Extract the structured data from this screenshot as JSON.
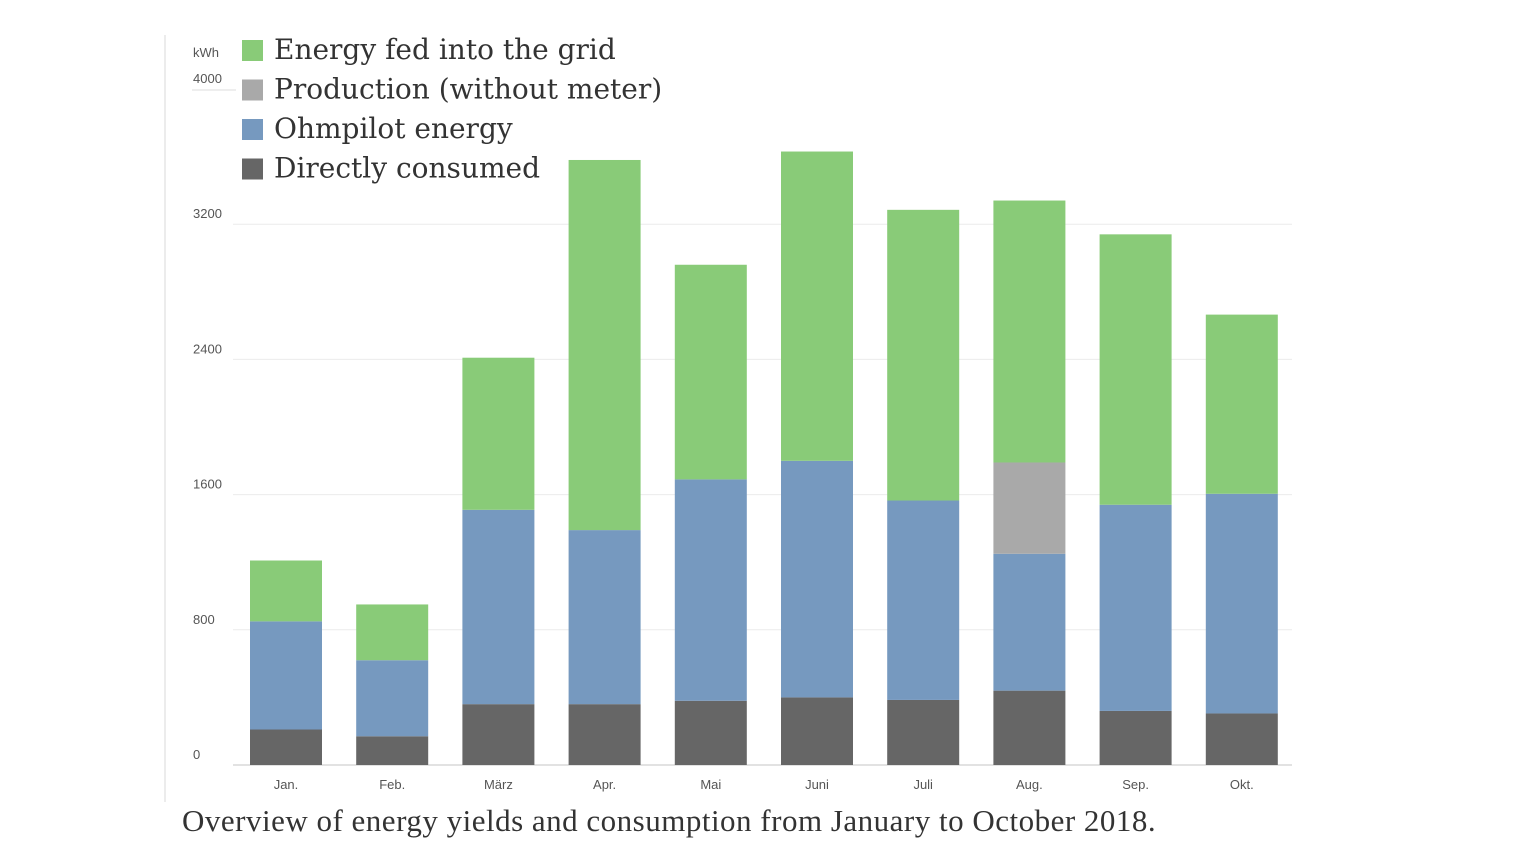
{
  "caption": "Overview of energy yields and consumption from January to October 2018.",
  "chart_data": {
    "type": "bar",
    "stacked": true,
    "ylabel": "kWh",
    "ylim": [
      0,
      4000
    ],
    "yticks": [
      0,
      800,
      1600,
      2400,
      3200,
      4000
    ],
    "grid": true,
    "legend_position": "top-left",
    "categories": [
      "Jan.",
      "Feb.",
      "März",
      "Apr.",
      "Mai",
      "Juni",
      "Juli",
      "Aug.",
      "Sep.",
      "Okt."
    ],
    "series": [
      {
        "name": "Directly consumed",
        "color": "#666666",
        "values": [
          210,
          170,
          360,
          360,
          380,
          400,
          385,
          440,
          320,
          305
        ]
      },
      {
        "name": "Ohmpilot energy",
        "color": "#7699bf",
        "values": [
          640,
          450,
          1150,
          1030,
          1310,
          1400,
          1180,
          810,
          1220,
          1300
        ]
      },
      {
        "name": "Production (without meter)",
        "color": "#a9a9a9",
        "values": [
          0,
          0,
          0,
          0,
          0,
          0,
          0,
          540,
          0,
          0
        ]
      },
      {
        "name": "Energy fed into the grid",
        "color": "#89cb78",
        "values": [
          360,
          330,
          900,
          2190,
          1270,
          1830,
          1720,
          1550,
          1600,
          1060
        ]
      }
    ],
    "legend_order": [
      "Energy fed into the grid",
      "Production (without meter)",
      "Ohmpilot energy",
      "Directly consumed"
    ]
  }
}
